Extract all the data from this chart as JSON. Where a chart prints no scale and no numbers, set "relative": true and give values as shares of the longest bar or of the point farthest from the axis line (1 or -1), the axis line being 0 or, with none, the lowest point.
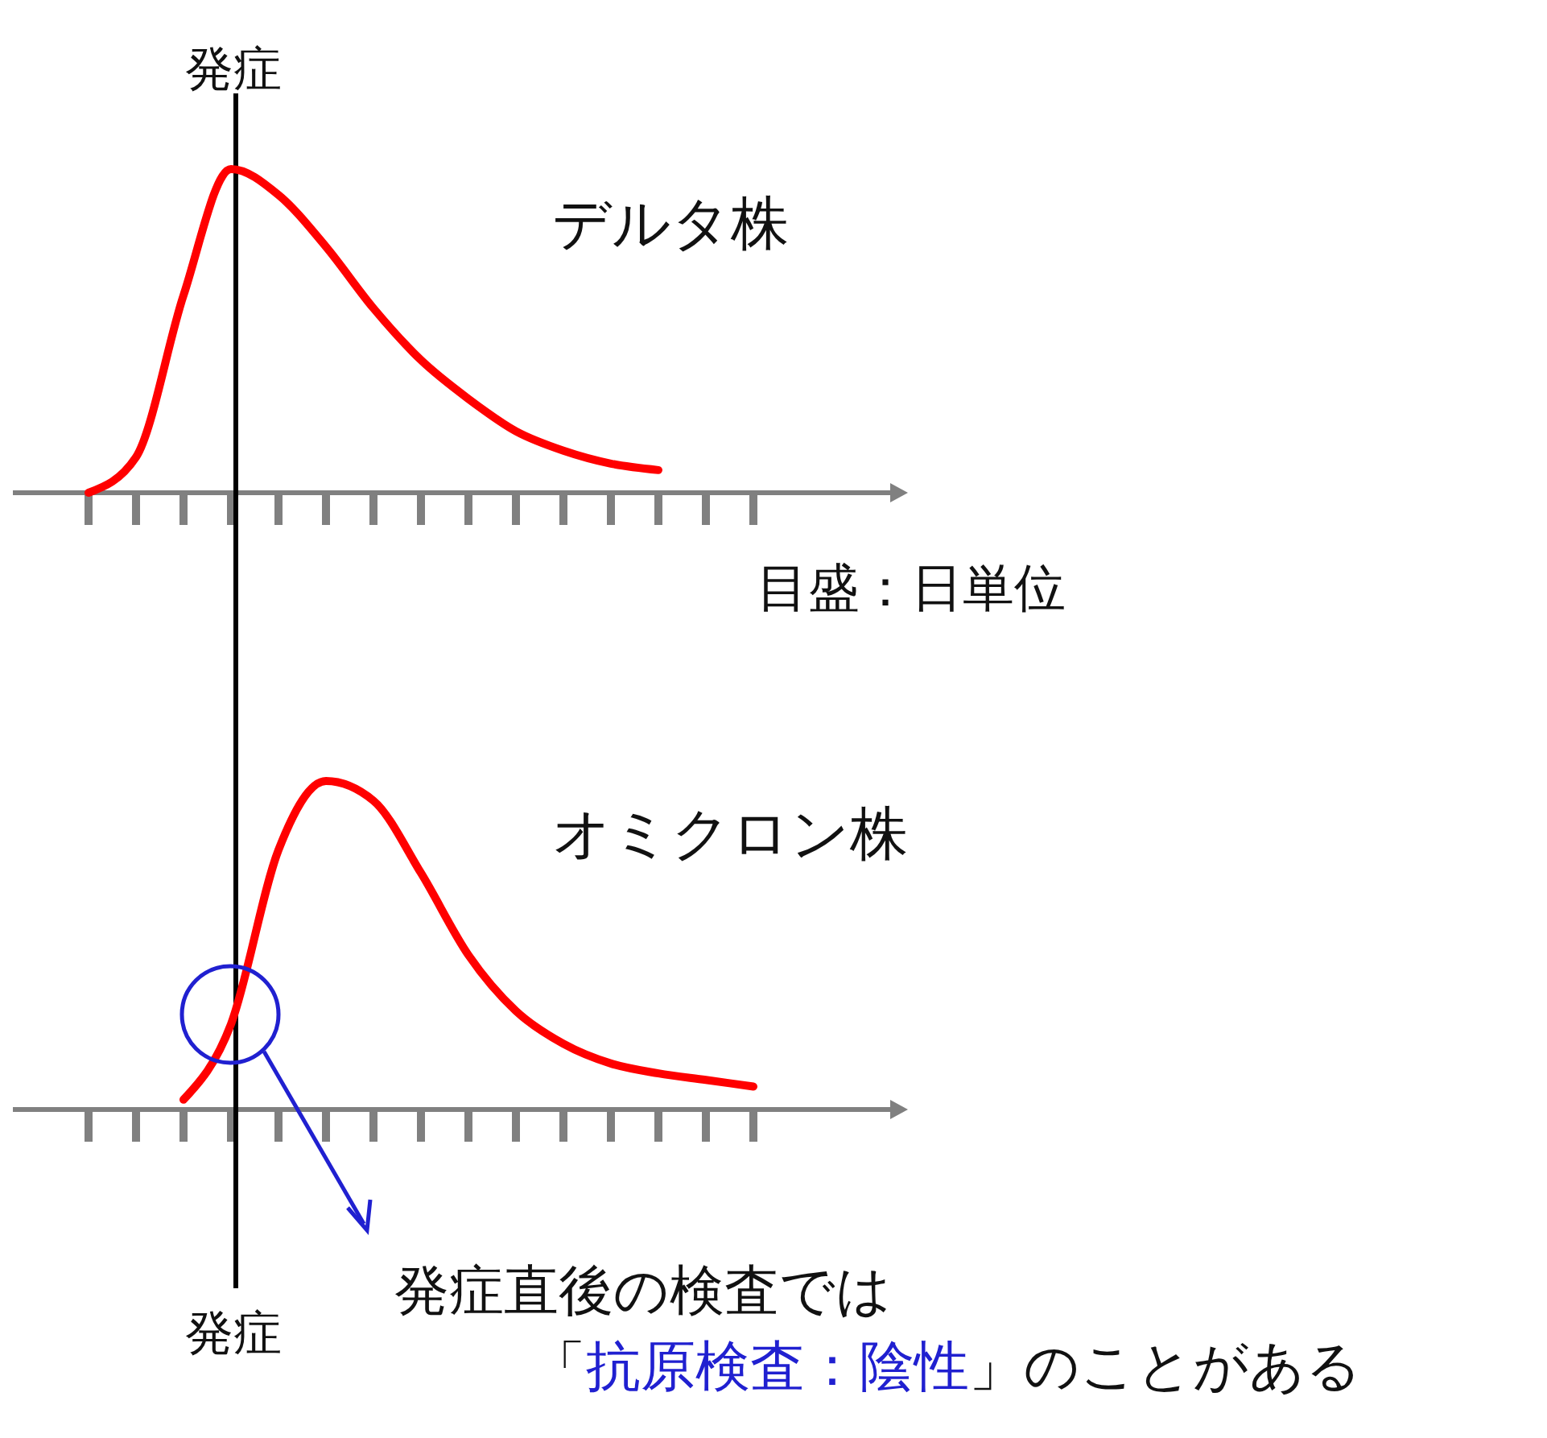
{
  "chart_data": [
    {
      "type": "line",
      "relative": true,
      "categories": [
        null,
        null,
        null,
        null,
        null,
        null,
        null,
        null,
        null,
        null,
        null,
        null,
        null,
        null,
        null
      ],
      "series": [
        {
          "name": "デルタ株",
          "color": "#ff0000",
          "values": [
            0,
            0.11,
            0.61,
            1,
            0.92,
            0.76,
            0.57,
            0.41,
            0.29,
            0.19,
            0.13,
            0.09,
            0.07,
            null,
            null
          ]
        }
      ],
      "annotations": [
        "発症",
        "目盛：日単位"
      ]
    },
    {
      "type": "line",
      "relative": true,
      "categories": [
        null,
        null,
        null,
        null,
        null,
        null,
        null,
        null,
        null,
        null,
        null,
        null,
        null,
        null,
        null
      ],
      "series": [
        {
          "name": "オミクロン株",
          "color": "#ff0000",
          "values": [
            null,
            null,
            0.03,
            0.26,
            0.79,
            1,
            0.94,
            0.72,
            0.47,
            0.3,
            0.2,
            0.14,
            0.11,
            0.09,
            0.07
          ]
        }
      ],
      "annotations": [
        "発症",
        "発症直後の検査では",
        "「抗原検査：陰性」のことがある"
      ]
    }
  ]
}
